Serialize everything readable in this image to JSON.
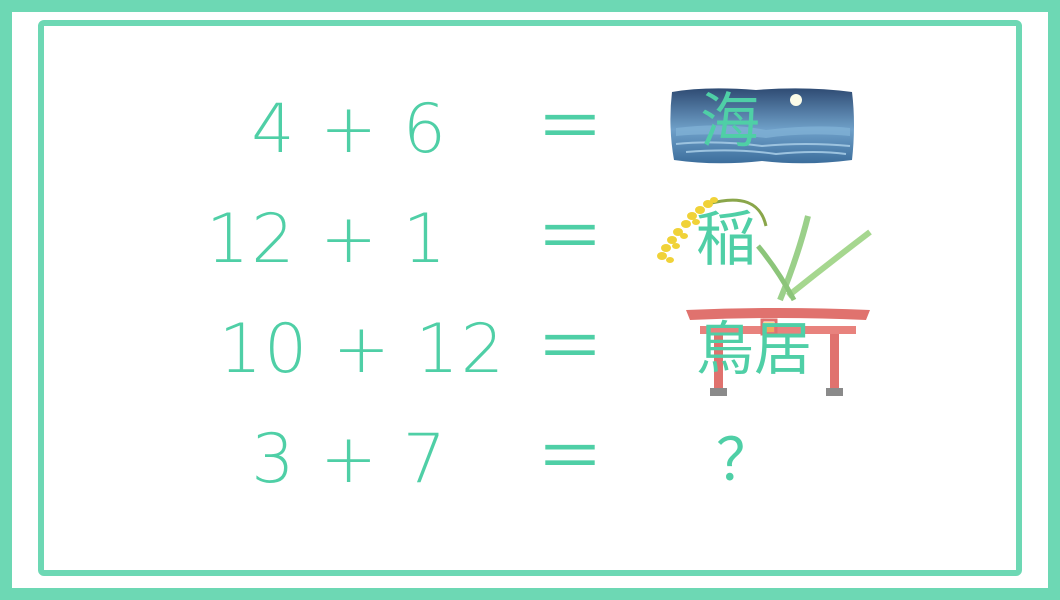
{
  "equations": [
    {
      "lhs": "4 + 6",
      "eq": "＝",
      "answer": "海",
      "picture": "sea-moon-illustration"
    },
    {
      "lhs": "12 + 1",
      "eq": "＝",
      "answer": "稲",
      "picture": "rice-plant-illustration"
    },
    {
      "lhs": "10 + 12",
      "eq": "＝",
      "answer": "鳥居",
      "picture": "torii-gate-illustration"
    },
    {
      "lhs": "3 + 7",
      "eq": "＝",
      "answer": "？"
    }
  ],
  "colors": {
    "border": "#6dd8b4",
    "text": "#4fcfa6",
    "torii": "#e0726e",
    "sea": "#5f95c2",
    "rice": "#f0d238"
  }
}
